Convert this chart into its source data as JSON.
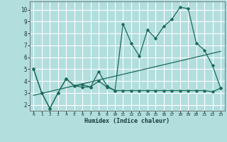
{
  "xlabel": "Humidex (Indice chaleur)",
  "background_color": "#b2dede",
  "grid_color": "#ffffff",
  "line_color": "#1a6b5a",
  "x_values": [
    0,
    1,
    2,
    3,
    4,
    5,
    6,
    7,
    8,
    9,
    10,
    11,
    12,
    13,
    14,
    15,
    16,
    17,
    18,
    19,
    20,
    21,
    22,
    23
  ],
  "line1": [
    5.0,
    3.0,
    1.7,
    3.0,
    4.2,
    3.6,
    3.7,
    3.5,
    4.8,
    3.6,
    3.2,
    8.8,
    7.2,
    6.1,
    8.3,
    7.6,
    8.6,
    9.2,
    10.2,
    10.1,
    7.2,
    6.6,
    5.3,
    3.4
  ],
  "line2": [
    5.0,
    3.0,
    1.7,
    3.0,
    4.2,
    3.6,
    3.5,
    3.5,
    4.0,
    3.5,
    3.2,
    3.2,
    3.2,
    3.2,
    3.2,
    3.2,
    3.2,
    3.2,
    3.2,
    3.2,
    3.2,
    3.2,
    3.1,
    3.4
  ],
  "line3_x": [
    0,
    23
  ],
  "line3_y": [
    2.8,
    6.5
  ],
  "yticks": [
    2,
    3,
    4,
    5,
    6,
    7,
    8,
    9,
    10
  ],
  "ylim": [
    1.5,
    10.7
  ],
  "xlim": [
    -0.5,
    23.5
  ]
}
